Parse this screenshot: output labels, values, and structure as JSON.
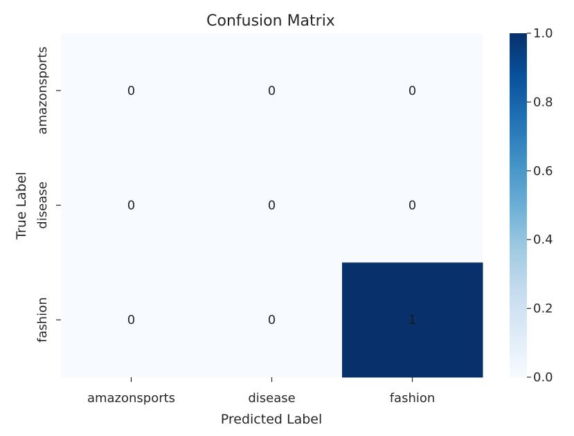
{
  "chart_data": {
    "type": "heatmap",
    "title": "Confusion Matrix",
    "xlabel": "Predicted Label",
    "ylabel": "True Label",
    "x_categories": [
      "amazonsports",
      "disease",
      "fashion"
    ],
    "y_categories": [
      "amazonsports",
      "disease",
      "fashion"
    ],
    "values": [
      [
        0,
        0,
        0
      ],
      [
        0,
        0,
        0
      ],
      [
        0,
        0,
        1
      ]
    ],
    "colorbar": {
      "range": [
        0.0,
        1.0
      ],
      "ticks": [
        "0.0",
        "0.2",
        "0.4",
        "0.6",
        "0.8",
        "1.0"
      ],
      "colormap": "Blues",
      "low_color": "#f7fbff",
      "high_color": "#08306b"
    },
    "grid": false,
    "legend": "colorbar-right"
  }
}
